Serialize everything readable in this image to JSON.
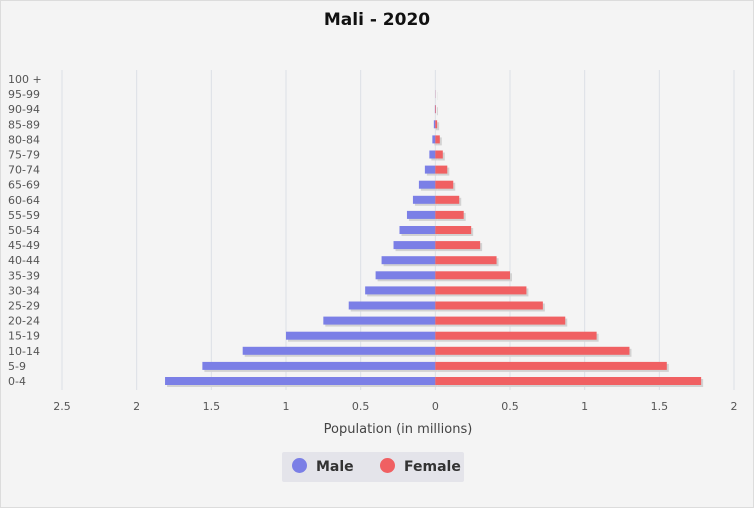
{
  "chart_data": {
    "type": "bar",
    "orientation": "horizontal",
    "title": "Mali - 2020",
    "xlabel": "Population (in millions)",
    "ylabel": "",
    "xlim": [
      -2.5,
      2
    ],
    "x_ticks": [
      -2.5,
      -2,
      -1.5,
      -1,
      -0.5,
      0,
      0.5,
      1,
      1.5,
      2
    ],
    "x_tick_labels": [
      "2.5",
      "2",
      "1.5",
      "1",
      "0.5",
      "0",
      "0.5",
      "1",
      "1.5",
      "2"
    ],
    "categories": [
      "0-4",
      "5-9",
      "10-14",
      "15-19",
      "20-24",
      "25-29",
      "30-34",
      "35-39",
      "40-44",
      "45-49",
      "50-54",
      "55-59",
      "60-64",
      "65-69",
      "70-74",
      "75-79",
      "80-84",
      "85-89",
      "90-94",
      "95-99",
      "100 +"
    ],
    "series": [
      {
        "name": "Male",
        "color": "#7b7fe6",
        "values": [
          1.81,
          1.56,
          1.29,
          1.0,
          0.75,
          0.58,
          0.47,
          0.4,
          0.36,
          0.28,
          0.24,
          0.19,
          0.15,
          0.11,
          0.07,
          0.04,
          0.02,
          0.01,
          0.003,
          0.001,
          0.0
        ]
      },
      {
        "name": "Female",
        "color": "#f06062",
        "values": [
          1.78,
          1.55,
          1.3,
          1.08,
          0.87,
          0.72,
          0.61,
          0.5,
          0.41,
          0.3,
          0.24,
          0.19,
          0.16,
          0.12,
          0.08,
          0.05,
          0.03,
          0.012,
          0.004,
          0.001,
          0.0
        ]
      }
    ],
    "grid": true,
    "legend_position": "bottom"
  },
  "legend": {
    "male_label": "Male",
    "female_label": "Female"
  }
}
